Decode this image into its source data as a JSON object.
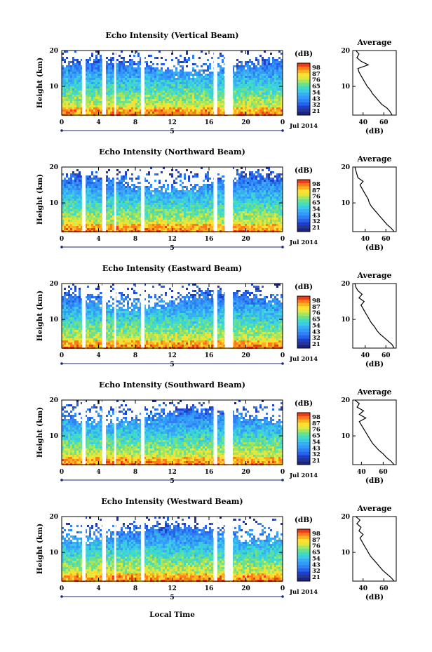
{
  "chart_data": {
    "type": "heatmap",
    "figure_xlabel": "Local Time",
    "x_ticks": [
      "0",
      "4",
      "8",
      "12",
      "16",
      "20",
      "0"
    ],
    "date_marker": "5",
    "date_label": "Jul 2014",
    "xlim": [
      0,
      24
    ],
    "ylim": [
      2,
      20
    ],
    "y_ticks": [
      "20",
      "10"
    ],
    "ylabel": "Height (km)",
    "colorbar_unit": "(dB)",
    "colors": [
      "#1a237e",
      "#283593",
      "#1e40c8",
      "#2563eb",
      "#2f80f2",
      "#3399ff",
      "#38b0f0",
      "#3ccbe4",
      "#40dcc8",
      "#6ee08a",
      "#a8e45c",
      "#e0e840",
      "#ffe030",
      "#ffb020",
      "#ff7a18",
      "#f03c14"
    ],
    "gap_bands_hours": [
      [
        2.2,
        2.6
      ],
      [
        4.4,
        4.8
      ],
      [
        5.7,
        5.9
      ],
      [
        8.6,
        9.0
      ],
      [
        16.5,
        16.9
      ],
      [
        17.7,
        18.6
      ]
    ],
    "average_title": "Average",
    "average_xlabel": "(dB)",
    "panels": [
      {
        "title": "Echo Intensity (Vertical Beam)",
        "colorbar_ticks": [
          "98",
          "87",
          "76",
          "65",
          "54",
          "43",
          "32",
          "21"
        ],
        "average_ticks": [
          "40",
          "60"
        ],
        "average_xlim": [
          30,
          72
        ],
        "average_profile": {
          "height_km": [
            2,
            3,
            4,
            5,
            6,
            7,
            8,
            9,
            10,
            11,
            12,
            13,
            14,
            15,
            16,
            17,
            18,
            19,
            20
          ],
          "db": [
            68,
            66,
            63,
            58,
            55,
            52,
            49,
            47,
            44,
            42,
            40,
            38,
            36,
            35,
            45,
            38,
            34,
            36,
            33
          ]
        }
      },
      {
        "title": "Echo Intensity (Northward Beam)",
        "colorbar_ticks": [
          "98",
          "87",
          "76",
          "65",
          "54",
          "43",
          "32",
          "21"
        ],
        "average_ticks": [
          "40",
          "60"
        ],
        "average_xlim": [
          28,
          70
        ],
        "average_profile": {
          "height_km": [
            2,
            3,
            4,
            5,
            6,
            7,
            8,
            9,
            10,
            11,
            12,
            13,
            14,
            15,
            16,
            17,
            18,
            19,
            20
          ],
          "db": [
            68,
            65,
            61,
            58,
            55,
            52,
            49,
            46,
            44,
            43,
            41,
            39,
            37,
            35,
            38,
            33,
            32,
            31,
            30
          ]
        }
      },
      {
        "title": "Echo Intensity (Eastward Beam)",
        "colorbar_ticks": [
          "98",
          "87",
          "76",
          "65",
          "54",
          "43",
          "32",
          "21"
        ],
        "average_ticks": [
          "40",
          "60"
        ],
        "average_xlim": [
          28,
          70
        ],
        "average_profile": {
          "height_km": [
            2,
            3,
            4,
            5,
            6,
            7,
            8,
            9,
            10,
            11,
            12,
            13,
            14,
            15,
            16,
            17,
            18,
            19,
            20
          ],
          "db": [
            68,
            66,
            62,
            58,
            54,
            51,
            49,
            46,
            44,
            42,
            40,
            38,
            36,
            39,
            34,
            37,
            33,
            31,
            30
          ]
        }
      },
      {
        "title": "Echo Intensity (Southward Beam)",
        "colorbar_ticks": [
          "98",
          "87",
          "76",
          "65",
          "54",
          "43",
          "32",
          "21"
        ],
        "average_ticks": [
          "40",
          "60"
        ],
        "average_xlim": [
          32,
          72
        ],
        "average_profile": {
          "height_km": [
            2,
            3,
            4,
            5,
            6,
            7,
            8,
            9,
            10,
            11,
            12,
            13,
            14,
            15,
            16,
            17,
            18,
            19,
            20
          ],
          "db": [
            70,
            67,
            63,
            60,
            56,
            53,
            50,
            48,
            46,
            44,
            42,
            40,
            38,
            44,
            38,
            42,
            36,
            38,
            34
          ]
        }
      },
      {
        "title": "Echo Intensity (Westward Beam)",
        "colorbar_ticks": [
          "98",
          "87",
          "76",
          "65",
          "54",
          "43",
          "32",
          "21"
        ],
        "average_ticks": [
          "40",
          "60"
        ],
        "average_xlim": [
          30,
          72
        ],
        "average_profile": {
          "height_km": [
            2,
            3,
            4,
            5,
            6,
            7,
            8,
            9,
            10,
            11,
            12,
            13,
            14,
            15,
            16,
            17,
            18,
            19,
            20
          ],
          "db": [
            70,
            67,
            63,
            59,
            56,
            53,
            50,
            47,
            45,
            43,
            41,
            39,
            37,
            40,
            36,
            38,
            34,
            37,
            33
          ]
        }
      }
    ]
  }
}
